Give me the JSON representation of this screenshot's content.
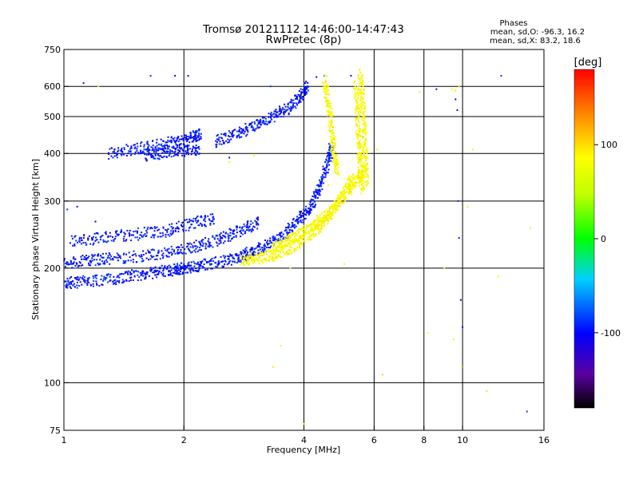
{
  "chart_data": {
    "type": "scatter",
    "title": "Tromsø 20121112 14:46:00-14:47:43",
    "subtitle": "RwPretec (8p)",
    "xlabel": "Frequency [MHz]",
    "ylabel": "Stationary phase Virtual Height [km]",
    "x_scale": "log",
    "y_scale": "log",
    "xlim": [
      1,
      16
    ],
    "ylim": [
      75,
      750
    ],
    "x_ticks": [
      1,
      2,
      4,
      6,
      8,
      10,
      16
    ],
    "x_tick_labels": [
      "1",
      "2",
      "4",
      "6",
      "8",
      "10",
      "16"
    ],
    "x_grid": [
      2,
      4,
      6,
      8,
      10
    ],
    "y_ticks": [
      75,
      100,
      200,
      300,
      400,
      500,
      600,
      750
    ],
    "y_tick_labels": [
      "75",
      "100",
      "200",
      "300",
      "400",
      "500",
      "600",
      "750"
    ],
    "y_grid": [
      100,
      200,
      300,
      400,
      500,
      600
    ],
    "grid": true,
    "stats": {
      "heading": "Phases",
      "line_o": "mean, sd,O: -96.3, 16.2",
      "line_x": "mean, sd,X: 83.2, 18.6"
    },
    "colorbar": {
      "label": "[deg]",
      "range": [
        -180,
        180
      ],
      "ticks": [
        -100,
        0,
        100
      ],
      "tick_labels": [
        "-100",
        "0",
        "100"
      ],
      "colormap": "rainbow"
    },
    "series": [
      {
        "mode": "O",
        "phase": -96,
        "traces": [
          [
            [
              1.0,
              182
            ],
            [
              1.1,
              184
            ],
            [
              1.3,
              187
            ],
            [
              1.5,
              191
            ],
            [
              1.7,
              195
            ],
            [
              1.9,
              198
            ],
            [
              2.0,
              200
            ],
            [
              2.2,
              203
            ],
            [
              2.5,
              208
            ],
            [
              2.8,
              215
            ],
            [
              3.0,
              222
            ],
            [
              3.3,
              232
            ],
            [
              3.6,
              248
            ],
            [
              3.9,
              268
            ],
            [
              4.2,
              295
            ],
            [
              4.4,
              330
            ],
            [
              4.6,
              380
            ],
            [
              4.7,
              420
            ]
          ],
          [
            [
              1.0,
              205
            ],
            [
              1.15,
              210
            ],
            [
              1.3,
              212
            ],
            [
              1.6,
              215
            ],
            [
              1.9,
              222
            ],
            [
              2.2,
              230
            ],
            [
              2.5,
              240
            ],
            [
              2.8,
              252
            ],
            [
              3.1,
              265
            ]
          ],
          [
            [
              1.05,
              235
            ],
            [
              1.25,
              240
            ],
            [
              1.5,
              245
            ],
            [
              1.8,
              250
            ],
            [
              2.1,
              262
            ],
            [
              2.4,
              270
            ]
          ],
          [
            [
              1.3,
              400
            ],
            [
              1.5,
              410
            ],
            [
              1.7,
              420
            ],
            [
              1.9,
              430
            ],
            [
              2.1,
              440
            ],
            [
              2.2,
              450
            ]
          ],
          [
            [
              1.6,
              395
            ],
            [
              1.8,
              400
            ],
            [
              2.0,
              405
            ],
            [
              2.2,
              410
            ]
          ],
          [
            [
              2.4,
              430
            ],
            [
              2.7,
              450
            ],
            [
              3.0,
              470
            ],
            [
              3.3,
              495
            ],
            [
              3.6,
              520
            ],
            [
              3.9,
              560
            ],
            [
              4.1,
              600
            ]
          ]
        ],
        "points": [
          [
            1.02,
            285
          ],
          [
            1.08,
            290
          ],
          [
            1.12,
            612
          ],
          [
            1.2,
            265
          ],
          [
            1.35,
            248
          ],
          [
            1.65,
            640
          ],
          [
            1.9,
            640
          ],
          [
            2.05,
            640
          ],
          [
            2.6,
            390
          ],
          [
            3.3,
            600
          ],
          [
            4.05,
            618
          ],
          [
            4.3,
            635
          ],
          [
            4.5,
            640
          ],
          [
            5.25,
            640
          ],
          [
            8.6,
            590
          ],
          [
            9.6,
            555
          ],
          [
            9.7,
            520
          ],
          [
            9.75,
            300
          ],
          [
            9.8,
            240
          ],
          [
            9.9,
            165
          ],
          [
            10.0,
            140
          ],
          [
            12.5,
            640
          ],
          [
            14.5,
            84
          ]
        ]
      },
      {
        "mode": "X",
        "phase": 83,
        "traces": [
          [
            [
              2.8,
              210
            ],
            [
              3.0,
              212
            ],
            [
              3.3,
              215
            ],
            [
              3.6,
              222
            ],
            [
              3.9,
              232
            ],
            [
              4.2,
              248
            ],
            [
              4.5,
              265
            ],
            [
              4.8,
              290
            ],
            [
              5.1,
              320
            ],
            [
              5.3,
              345
            ]
          ],
          [
            [
              3.3,
              225
            ],
            [
              3.6,
              235
            ],
            [
              3.9,
              245
            ],
            [
              4.2,
              258
            ],
            [
              4.5,
              272
            ],
            [
              4.8,
              290
            ],
            [
              5.2,
              320
            ],
            [
              5.5,
              345
            ],
            [
              5.7,
              365
            ]
          ],
          [
            [
              4.5,
              620
            ],
            [
              4.6,
              540
            ],
            [
              4.7,
              460
            ],
            [
              4.75,
              400
            ],
            [
              4.85,
              360
            ]
          ],
          [
            [
              5.4,
              600
            ],
            [
              5.45,
              500
            ],
            [
              5.5,
              420
            ],
            [
              5.55,
              360
            ],
            [
              5.6,
              320
            ]
          ],
          [
            [
              5.55,
              650
            ],
            [
              5.6,
              560
            ],
            [
              5.65,
              480
            ],
            [
              5.7,
              400
            ],
            [
              5.75,
              330
            ]
          ]
        ],
        "points": [
          [
            1.22,
            600
          ],
          [
            2.6,
            380
          ],
          [
            3.0,
            395
          ],
          [
            3.1,
            205
          ],
          [
            3.35,
            110
          ],
          [
            3.5,
            125
          ],
          [
            3.7,
            200
          ],
          [
            4.0,
            78
          ],
          [
            4.6,
            330
          ],
          [
            5.05,
            205
          ],
          [
            5.6,
            320
          ],
          [
            6.1,
            410
          ],
          [
            6.3,
            105
          ],
          [
            7.8,
            580
          ],
          [
            8.2,
            135
          ],
          [
            9.0,
            200
          ],
          [
            9.4,
            590
          ],
          [
            9.5,
            130
          ],
          [
            9.6,
            585
          ],
          [
            9.8,
            600
          ],
          [
            10.05,
            110
          ],
          [
            10.3,
            290
          ],
          [
            10.6,
            410
          ],
          [
            11.5,
            95
          ],
          [
            12.3,
            190
          ],
          [
            14.8,
            255
          ]
        ]
      }
    ]
  }
}
